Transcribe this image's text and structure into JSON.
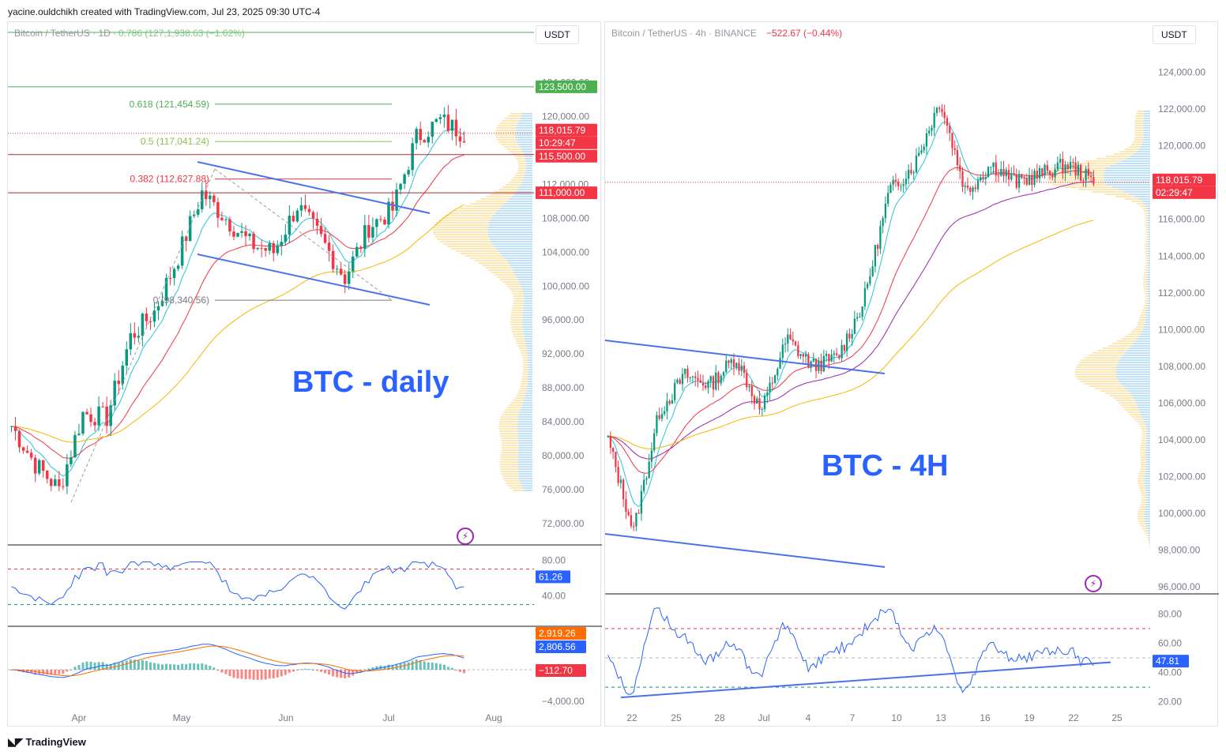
{
  "header": {
    "author_line": "yacine.ouldchikh created with TradingView.com, Jul 23, 2025 09:30 UTC-4"
  },
  "footer": {
    "brand": "TradingView"
  },
  "colors": {
    "up": "#089981",
    "down": "#f23645",
    "ema_fast": "#26c6da",
    "ema_mid": "#f23645",
    "ema_slow": "#f5b800",
    "ema_purple": "#9c27b0",
    "trendline": "#4a72e8",
    "volume_profile_up": "#bfe1f7",
    "volume_profile_down": "#fde7b5",
    "label_text": "#2962ff"
  },
  "left": {
    "symbol_line": "Bitcoin / TetherUS · 1D ·",
    "overlap_text": "0.786 (127,1,938.63 (−1.62%)",
    "currency": "USDT",
    "big_label": "BTC - daily",
    "price_ticks": [
      "124,000.00",
      "120,000.00",
      "112,000.00",
      "108,000.00",
      "104,000.00",
      "100,000.00",
      "96,000.00",
      "92,000.00",
      "88,000.00",
      "84,000.00",
      "80,000.00",
      "76,000.00",
      "72,000.00"
    ],
    "x_ticks": [
      "Apr",
      "May",
      "Jun",
      "Jul",
      "Aug"
    ],
    "fib_labels": [
      "0.618 (121,454.59)",
      "0.5 (117,041.24)",
      "0.382 (112,627.88)",
      "0 (98,340.56)"
    ],
    "levels": [
      {
        "text": "123,500.00",
        "bg": "#4caf50"
      },
      {
        "text": "118,015.79",
        "bg": "#f23645"
      },
      {
        "text": "10:29:47",
        "bg": "#f23645"
      },
      {
        "text": "115,500.00",
        "bg": "#f23645"
      },
      {
        "text": "111,000.00",
        "bg": "#f23645"
      }
    ],
    "rsi": {
      "ticks": [
        "80.00",
        "40.00"
      ],
      "value": "61.26"
    },
    "macd": {
      "ticks": [
        "−4,000.00"
      ],
      "values": [
        "2,919.26",
        "2,806.56",
        "−112.70"
      ]
    }
  },
  "right": {
    "symbol_line": "Bitcoin / TetherUS · 4h · BINANCE",
    "change": "−522.67 (−0.44%)",
    "currency": "USDT",
    "big_label": "BTC - 4H",
    "price_ticks": [
      "124,000.00",
      "122,000.00",
      "120,000.00",
      "118,000.00",
      "116,000.00",
      "114,000.00",
      "112,000.00",
      "110,000.00",
      "108,000.00",
      "106,000.00",
      "104,000.00",
      "102,000.00",
      "100,000.00",
      "98,000.00",
      "96,000.00"
    ],
    "x_ticks": [
      "22",
      "25",
      "28",
      "Jul",
      "4",
      "7",
      "10",
      "13",
      "16",
      "19",
      "22",
      "25"
    ],
    "levels": [
      {
        "text": "118,015.79",
        "bg": "#f23645"
      },
      {
        "text": "02:29:47",
        "bg": "#f23645"
      }
    ],
    "rsi": {
      "ticks": [
        "80.00",
        "60.00",
        "40.00",
        "20.00"
      ],
      "value": "47.81"
    }
  },
  "chart_data": [
    {
      "type": "candlestick",
      "title": "Bitcoin / TetherUS · 1D",
      "ylim": [
        72000,
        126000
      ],
      "last_price": 118015.79,
      "horizontal_levels": [
        123500,
        115500,
        111000
      ],
      "fibonacci": [
        {
          "ratio": 0.786,
          "value": null
        },
        {
          "ratio": 0.618,
          "value": 121454.59
        },
        {
          "ratio": 0.5,
          "value": 117041.24
        },
        {
          "ratio": 0.382,
          "value": 112627.88
        },
        {
          "ratio": 0,
          "value": 98340.56
        }
      ],
      "close_path": [
        [
          "Apr",
          83500
        ],
        [
          "Apr",
          79000
        ],
        [
          "Apr",
          76000
        ],
        [
          "Apr",
          85000
        ],
        [
          "Apr",
          84500
        ],
        [
          "May",
          94000
        ],
        [
          "May",
          97000
        ],
        [
          "May",
          103500
        ],
        [
          "May",
          111000
        ],
        [
          "May",
          108000
        ],
        [
          "Jun",
          105000
        ],
        [
          "Jun",
          104000
        ],
        [
          "Jun",
          109500
        ],
        [
          "Jun",
          105500
        ],
        [
          "Jun",
          101000
        ],
        [
          "Jul",
          107000
        ],
        [
          "Jul",
          109000
        ],
        [
          "Jul",
          117500
        ],
        [
          "Jul",
          119500
        ],
        [
          "Jul",
          118015
        ]
      ],
      "rsi_last": 61.26,
      "macd": {
        "macd": 2919.26,
        "signal": 2806.56,
        "histogram": -112.7
      }
    },
    {
      "type": "candlestick",
      "title": "Bitcoin / TetherUS · 4h · BINANCE",
      "ylim": [
        96000,
        124500
      ],
      "last_price": 118015.79,
      "change": "−522.67 (−0.44%)",
      "close_path": [
        [
          "22",
          104000
        ],
        [
          "22",
          99000
        ],
        [
          "25",
          105500
        ],
        [
          "25",
          107500
        ],
        [
          "28",
          107000
        ],
        [
          "28",
          108500
        ],
        [
          "Jul",
          105500
        ],
        [
          "4",
          109500
        ],
        [
          "4",
          108000
        ],
        [
          "7",
          108500
        ],
        [
          "10",
          111500
        ],
        [
          "10",
          117500
        ],
        [
          "13",
          119000
        ],
        [
          "13",
          122500
        ],
        [
          "16",
          117500
        ],
        [
          "16",
          119000
        ],
        [
          "19",
          118000
        ],
        [
          "19",
          118500
        ],
        [
          "22",
          119000
        ],
        [
          "22",
          118015
        ]
      ],
      "rsi_last": 47.81
    }
  ]
}
